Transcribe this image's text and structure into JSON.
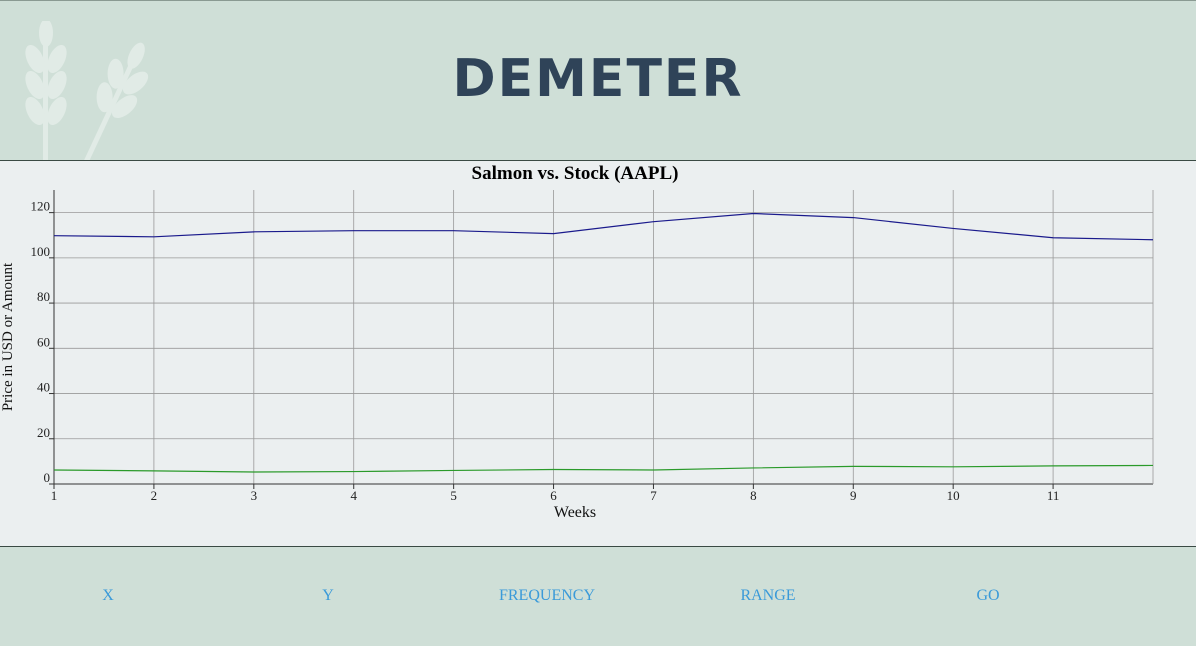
{
  "header": {
    "title": "DEMETER"
  },
  "chart_data": {
    "type": "line",
    "title": "Salmon vs. Stock (AAPL)",
    "x_label": "Weeks",
    "y_label": "Price in USD or Amount",
    "x": [
      1,
      2,
      3,
      4,
      5,
      6,
      7,
      8,
      9,
      10,
      11,
      12
    ],
    "series": [
      {
        "color": "#1a1a8c",
        "values": [
          109.8,
          109.3,
          111.5,
          112,
          112,
          110.7,
          116,
          119.6,
          117.8,
          113,
          108.9,
          108
        ]
      },
      {
        "color": "#2a9a2a",
        "values": [
          6.2,
          5.8,
          5.3,
          5.5,
          6,
          6.4,
          6.2,
          7.1,
          7.8,
          7.6,
          8,
          8.2
        ]
      }
    ],
    "xlim": [
      1,
      12
    ],
    "xticks": [
      1,
      2,
      3,
      4,
      5,
      6,
      7,
      8,
      9,
      10,
      11
    ],
    "ylim": [
      0,
      130
    ],
    "yticks": [
      0,
      20,
      40,
      60,
      80,
      100,
      120
    ],
    "grid": true
  },
  "nav": {
    "items": [
      "X",
      "Y",
      "FREQUENCY",
      "RANGE",
      "GO"
    ]
  }
}
